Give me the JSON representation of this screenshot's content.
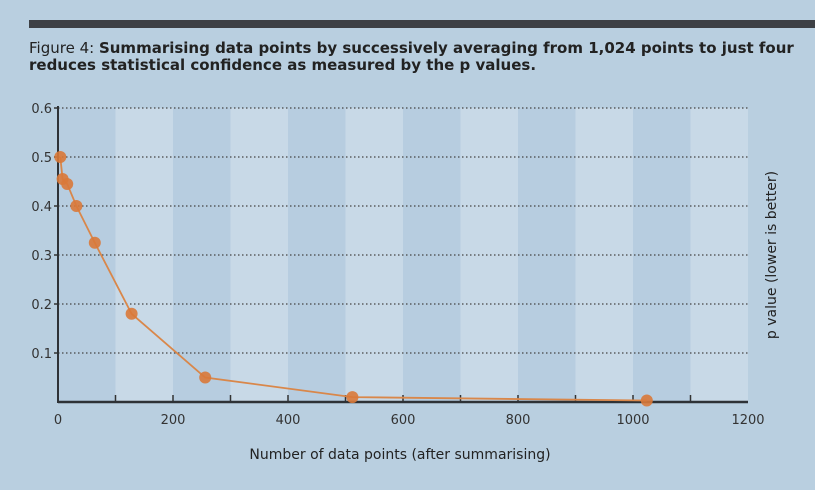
{
  "figure_label": "Figure 4:",
  "chart_data": {
    "type": "line",
    "title": "Summarising data points by successively averaging from 1,024 points to just four reduces statistical confidence as measured by the p values.",
    "xlabel": "Number of data points (after summarising)",
    "ylabel": "p value (lower is better)",
    "xlim": [
      0,
      1200
    ],
    "ylim": [
      0,
      0.6
    ],
    "xticks": [
      0,
      200,
      400,
      600,
      800,
      1000,
      1200
    ],
    "yticks": [
      0.1,
      0.2,
      0.3,
      0.4,
      0.5,
      0.6
    ],
    "grid": "horizontal dotted",
    "x": [
      4,
      8,
      16,
      32,
      64,
      128,
      256,
      512,
      1024
    ],
    "y": [
      0.5,
      0.455,
      0.445,
      0.4,
      0.325,
      0.18,
      0.05,
      0.01,
      0.003
    ],
    "colors": {
      "line": "#d9874a",
      "marker": "#d9793a",
      "band_light": "#c8d9e7",
      "band_dark": "#b7cde0"
    }
  }
}
